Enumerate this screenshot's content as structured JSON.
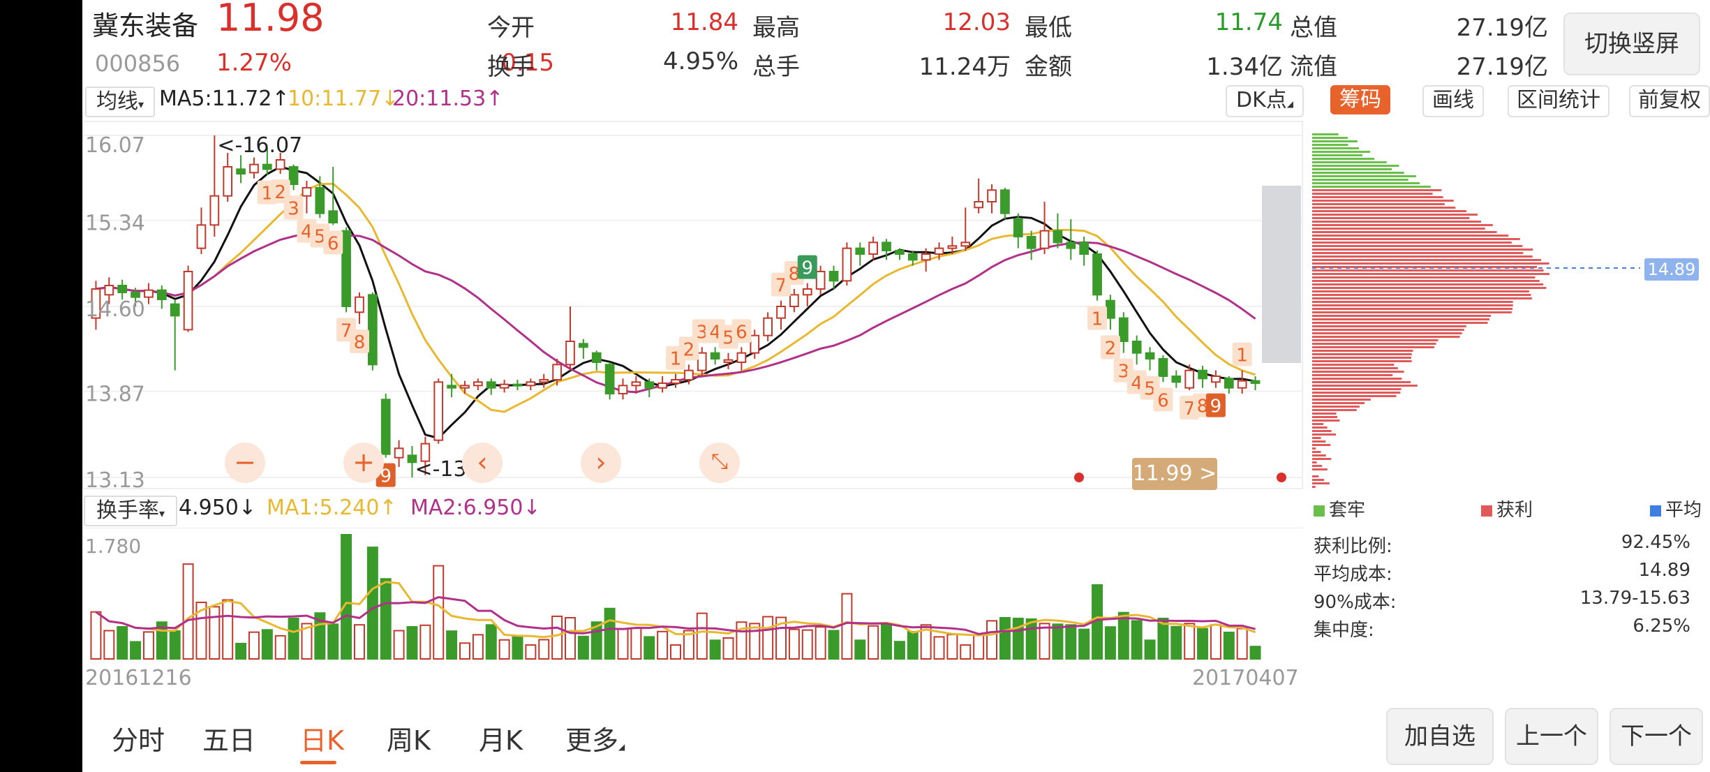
{
  "header": {
    "name": "冀东装备",
    "price": "11.98",
    "code": "000856",
    "change_pct": "1.27%",
    "change": "0.15",
    "open_label": "今开",
    "open": "11.84",
    "high_label": "最高",
    "high": "12.03",
    "low_label": "最低",
    "low": "11.74",
    "mktcap_label": "总值",
    "mktcap": "27.19亿",
    "turnover_label": "换手",
    "turnover": "4.95%",
    "volume_label": "总手",
    "volume": "11.24万",
    "amount_label": "金额",
    "amount": "1.34亿",
    "float_label": "流值",
    "float": "27.19亿",
    "switch_label": "切换竖屏"
  },
  "indicator_bar": {
    "select_label": "均线",
    "ma5": "MA5:11.72",
    "ma10": "10:11.77",
    "ma20": "20:11.53",
    "dk_label": "DK点",
    "chip_label": "筹码",
    "draw_label": "画线",
    "range_label": "区间统计",
    "adjust_label": "前复权"
  },
  "price_chart": {
    "y_ticks": [
      "16.07",
      "15.34",
      "14.60",
      "13.87",
      "13.13"
    ],
    "max_label": "<-16.07",
    "min_label": "<-13.13",
    "last_badge": "11.99 >",
    "chip_avg_label": "14.89",
    "td_counts": [
      "1",
      "2",
      "3",
      "4",
      "5",
      "6",
      "7",
      "8",
      "9"
    ]
  },
  "volume_bar": {
    "select_label": "换手率",
    "value": "4.950",
    "ma1": "MA1:5.240",
    "ma2": "MA2:6.950",
    "max_tick": "1.780"
  },
  "dates": {
    "start": "20161216",
    "end": "20170407"
  },
  "chip_legend": {
    "trapped": "套牢",
    "profit": "获利",
    "avg": "平均"
  },
  "chip_stats": [
    {
      "label": "获利比例:",
      "value": "92.45%"
    },
    {
      "label": "平均成本:",
      "value": "14.89"
    },
    {
      "label": "90%成本:",
      "value": "13.79-15.63"
    },
    {
      "label": "集中度:",
      "value": "6.25%"
    }
  ],
  "tabs": [
    "分时",
    "五日",
    "日K",
    "周K",
    "月K",
    "更多"
  ],
  "active_tab": "日K",
  "bottom_buttons": {
    "add": "加自选",
    "prev": "上一个",
    "next": "下一个"
  },
  "colors": {
    "up": "#c0392b",
    "down": "#3a9a2a",
    "ma5": "#111111",
    "ma10": "#e8b830",
    "ma20": "#b0308a",
    "accent": "#e8632b"
  },
  "chart_data": {
    "type": "candlestick",
    "x_range": [
      "20161216",
      "20170407"
    ],
    "ylim": [
      13.13,
      16.07
    ],
    "candles": [
      {
        "o": 14.5,
        "c": 14.75,
        "h": 14.82,
        "l": 14.4
      },
      {
        "o": 14.7,
        "c": 14.78,
        "h": 14.85,
        "l": 14.62
      },
      {
        "o": 14.78,
        "c": 14.72,
        "h": 14.83,
        "l": 14.66
      },
      {
        "o": 14.72,
        "c": 14.68,
        "h": 14.76,
        "l": 14.6
      },
      {
        "o": 14.68,
        "c": 14.74,
        "h": 14.8,
        "l": 14.62
      },
      {
        "o": 14.74,
        "c": 14.66,
        "h": 14.78,
        "l": 14.58
      },
      {
        "o": 14.62,
        "c": 14.52,
        "h": 14.66,
        "l": 14.05
      },
      {
        "o": 14.4,
        "c": 14.9,
        "h": 14.95,
        "l": 14.38
      },
      {
        "o": 15.1,
        "c": 15.3,
        "h": 15.45,
        "l": 15.05
      },
      {
        "o": 15.3,
        "c": 15.55,
        "h": 16.07,
        "l": 15.2
      },
      {
        "o": 15.55,
        "c": 15.8,
        "h": 15.92,
        "l": 15.5
      },
      {
        "o": 15.78,
        "c": 15.74,
        "h": 15.9,
        "l": 15.66
      },
      {
        "o": 15.75,
        "c": 15.82,
        "h": 15.88,
        "l": 15.7
      },
      {
        "o": 15.82,
        "c": 15.78,
        "h": 15.96,
        "l": 15.73
      },
      {
        "o": 15.78,
        "c": 15.86,
        "h": 15.92,
        "l": 15.74
      },
      {
        "o": 15.8,
        "c": 15.65,
        "h": 15.82,
        "l": 15.6
      },
      {
        "o": 15.55,
        "c": 15.62,
        "h": 15.68,
        "l": 15.4
      },
      {
        "o": 15.62,
        "c": 15.4,
        "h": 15.72,
        "l": 15.36
      },
      {
        "o": 15.42,
        "c": 15.32,
        "h": 15.8,
        "l": 15.3
      },
      {
        "o": 15.25,
        "c": 14.6,
        "h": 15.28,
        "l": 14.55
      },
      {
        "o": 14.55,
        "c": 14.68,
        "h": 14.72,
        "l": 14.45
      },
      {
        "o": 14.7,
        "c": 14.1,
        "h": 14.72,
        "l": 14.05
      },
      {
        "o": 13.8,
        "c": 13.33,
        "h": 13.85,
        "l": 13.3
      },
      {
        "o": 13.3,
        "c": 13.38,
        "h": 13.45,
        "l": 13.22
      },
      {
        "o": 13.32,
        "c": 13.26,
        "h": 13.4,
        "l": 13.13
      },
      {
        "o": 13.27,
        "c": 13.42,
        "h": 13.48,
        "l": 13.15
      },
      {
        "o": 13.45,
        "c": 13.95,
        "h": 13.98,
        "l": 13.42
      },
      {
        "o": 13.92,
        "c": 13.9,
        "h": 14.02,
        "l": 13.82
      },
      {
        "o": 13.9,
        "c": 13.92,
        "h": 13.96,
        "l": 13.85
      },
      {
        "o": 13.92,
        "c": 13.95,
        "h": 13.98,
        "l": 13.88
      },
      {
        "o": 13.95,
        "c": 13.9,
        "h": 13.98,
        "l": 13.84
      },
      {
        "o": 13.9,
        "c": 13.93,
        "h": 13.97,
        "l": 13.86
      },
      {
        "o": 13.93,
        "c": 13.92,
        "h": 13.97,
        "l": 13.88
      },
      {
        "o": 13.92,
        "c": 13.95,
        "h": 13.98,
        "l": 13.88
      },
      {
        "o": 13.95,
        "c": 13.97,
        "h": 14.02,
        "l": 13.9
      },
      {
        "o": 13.97,
        "c": 14.1,
        "h": 14.15,
        "l": 13.92
      },
      {
        "o": 14.1,
        "c": 14.3,
        "h": 14.6,
        "l": 14.05
      },
      {
        "o": 14.28,
        "c": 14.25,
        "h": 14.32,
        "l": 14.15
      },
      {
        "o": 14.2,
        "c": 14.12,
        "h": 14.22,
        "l": 14.05
      },
      {
        "o": 14.1,
        "c": 13.85,
        "h": 14.12,
        "l": 13.8
      },
      {
        "o": 13.85,
        "c": 13.92,
        "h": 13.98,
        "l": 13.8
      },
      {
        "o": 13.92,
        "c": 13.95,
        "h": 14.0,
        "l": 13.85
      },
      {
        "o": 13.95,
        "c": 13.9,
        "h": 13.98,
        "l": 13.82
      },
      {
        "o": 13.9,
        "c": 13.94,
        "h": 14.0,
        "l": 13.86
      },
      {
        "o": 13.94,
        "c": 13.97,
        "h": 14.02,
        "l": 13.9
      },
      {
        "o": 13.97,
        "c": 14.05,
        "h": 14.1,
        "l": 13.93
      },
      {
        "o": 14.05,
        "c": 14.2,
        "h": 14.25,
        "l": 14.0
      },
      {
        "o": 14.2,
        "c": 14.15,
        "h": 14.25,
        "l": 14.1
      },
      {
        "o": 14.12,
        "c": 14.14,
        "h": 14.2,
        "l": 14.06
      },
      {
        "o": 14.12,
        "c": 14.2,
        "h": 14.25,
        "l": 14.05
      },
      {
        "o": 14.2,
        "c": 14.35,
        "h": 14.4,
        "l": 14.15
      },
      {
        "o": 14.35,
        "c": 14.5,
        "h": 14.55,
        "l": 14.3
      },
      {
        "o": 14.5,
        "c": 14.6,
        "h": 14.65,
        "l": 14.4
      },
      {
        "o": 14.6,
        "c": 14.7,
        "h": 14.75,
        "l": 14.55
      },
      {
        "o": 14.7,
        "c": 14.75,
        "h": 14.8,
        "l": 14.6
      },
      {
        "o": 14.75,
        "c": 14.9,
        "h": 14.95,
        "l": 14.7
      },
      {
        "o": 14.9,
        "c": 14.82,
        "h": 14.95,
        "l": 14.75
      },
      {
        "o": 14.82,
        "c": 15.1,
        "h": 15.15,
        "l": 14.78
      },
      {
        "o": 15.1,
        "c": 15.05,
        "h": 15.15,
        "l": 14.95
      },
      {
        "o": 15.05,
        "c": 15.15,
        "h": 15.2,
        "l": 15.0
      },
      {
        "o": 15.15,
        "c": 15.08,
        "h": 15.18,
        "l": 15.0
      },
      {
        "o": 15.08,
        "c": 15.05,
        "h": 15.1,
        "l": 15.0
      },
      {
        "o": 15.05,
        "c": 15.0,
        "h": 15.08,
        "l": 14.95
      },
      {
        "o": 15.0,
        "c": 15.05,
        "h": 15.1,
        "l": 14.9
      },
      {
        "o": 15.05,
        "c": 15.1,
        "h": 15.15,
        "l": 15.0
      },
      {
        "o": 15.1,
        "c": 15.12,
        "h": 15.2,
        "l": 15.05
      },
      {
        "o": 15.12,
        "c": 15.15,
        "h": 15.45,
        "l": 15.08
      },
      {
        "o": 15.45,
        "c": 15.5,
        "h": 15.7,
        "l": 15.4
      },
      {
        "o": 15.5,
        "c": 15.6,
        "h": 15.65,
        "l": 15.4
      },
      {
        "o": 15.6,
        "c": 15.4,
        "h": 15.62,
        "l": 15.35
      },
      {
        "o": 15.35,
        "c": 15.2,
        "h": 15.4,
        "l": 15.1
      },
      {
        "o": 15.2,
        "c": 15.1,
        "h": 15.25,
        "l": 15.0
      },
      {
        "o": 15.1,
        "c": 15.25,
        "h": 15.5,
        "l": 15.05
      },
      {
        "o": 15.25,
        "c": 15.15,
        "h": 15.4,
        "l": 15.1
      },
      {
        "o": 15.15,
        "c": 15.1,
        "h": 15.35,
        "l": 15.0
      },
      {
        "o": 15.15,
        "c": 15.05,
        "h": 15.2,
        "l": 14.95
      },
      {
        "o": 15.05,
        "c": 14.7,
        "h": 15.08,
        "l": 14.65
      },
      {
        "o": 14.65,
        "c": 14.5,
        "h": 14.7,
        "l": 14.4
      },
      {
        "o": 14.5,
        "c": 14.3,
        "h": 14.55,
        "l": 14.2
      },
      {
        "o": 14.3,
        "c": 14.2,
        "h": 14.35,
        "l": 14.1
      },
      {
        "o": 14.2,
        "c": 14.15,
        "h": 14.25,
        "l": 14.05
      },
      {
        "o": 14.15,
        "c": 14.0,
        "h": 14.18,
        "l": 13.95
      },
      {
        "o": 14.0,
        "c": 13.95,
        "h": 14.05,
        "l": 13.9
      },
      {
        "o": 13.9,
        "c": 14.05,
        "h": 14.1,
        "l": 13.88
      },
      {
        "o": 14.05,
        "c": 13.98,
        "h": 14.09,
        "l": 13.9
      },
      {
        "o": 13.95,
        "c": 14.0,
        "h": 14.05,
        "l": 13.9
      },
      {
        "o": 13.98,
        "c": 13.9,
        "h": 14.0,
        "l": 13.85
      },
      {
        "o": 13.9,
        "c": 13.96,
        "h": 14.05,
        "l": 13.85
      },
      {
        "o": 13.96,
        "c": 13.94,
        "h": 14.0,
        "l": 13.88
      }
    ]
  }
}
